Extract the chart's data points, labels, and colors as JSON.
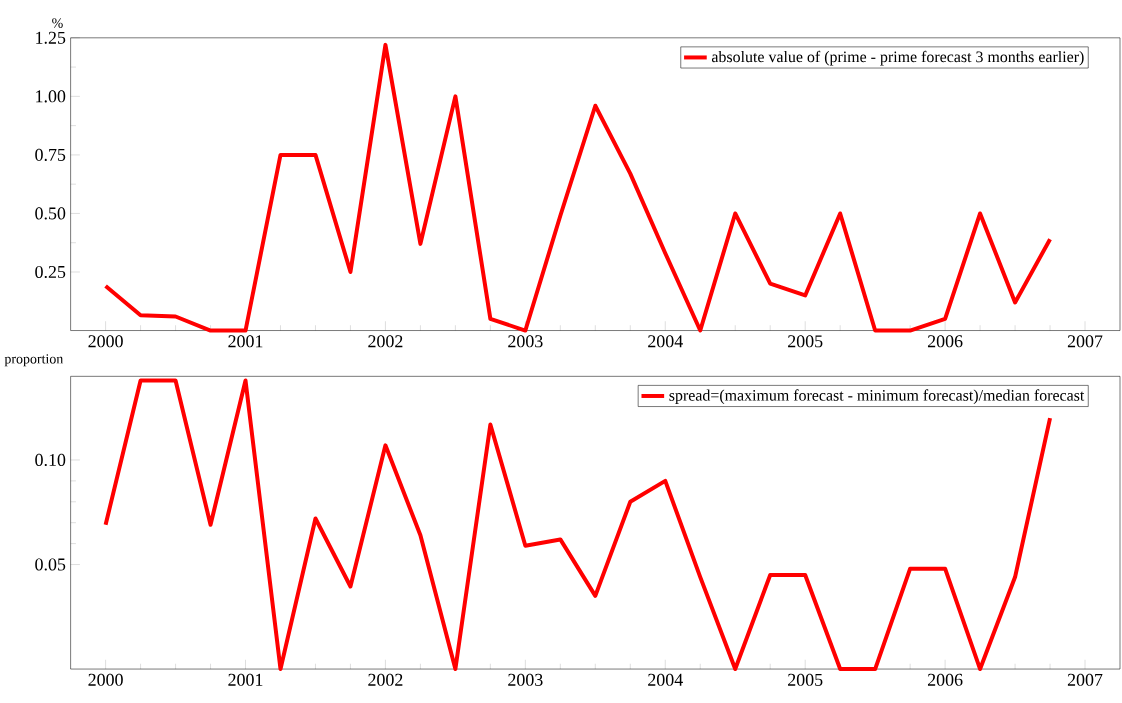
{
  "chart_data": [
    {
      "type": "line",
      "ylabel": "%",
      "legend": "top right",
      "line_style": "solid",
      "marker": "none",
      "x": [
        2000,
        2000.25,
        2000.5,
        2000.75,
        2001,
        2001.25,
        2001.5,
        2001.75,
        2002,
        2002.25,
        2002.5,
        2002.75,
        2003,
        2003.25,
        2003.5,
        2003.75,
        2004,
        2004.25,
        2004.5,
        2004.75,
        2005,
        2005.25,
        2005.5,
        2005.75,
        2006,
        2006.25,
        2006.5,
        2006.75
      ],
      "series": [
        {
          "name": "absolute value of (prime - prime forecast 3 months earlier)",
          "color": "#ff0000",
          "values": [
            0.19,
            0.065,
            0.06,
            0,
            0,
            0.75,
            0.75,
            0.25,
            1.22,
            0.37,
            1.0,
            0.05,
            0,
            0.49,
            0.96,
            0.67,
            0.33,
            0,
            0.5,
            0.2,
            0.15,
            0.5,
            0,
            0,
            0.05,
            0.5,
            0.12,
            0.39
          ]
        }
      ],
      "xlim": [
        1999.75,
        2007.25
      ],
      "xticks": [
        2000,
        2001,
        2002,
        2003,
        2004,
        2005,
        2006,
        2007
      ],
      "ylim": [
        0,
        1.25
      ],
      "yticks": [
        {
          "value": 0.25,
          "label": "0.25"
        },
        {
          "value": 0.5,
          "label": "0.50"
        },
        {
          "value": 0.75,
          "label": "0.75"
        },
        {
          "value": 1.0,
          "label": "1.00"
        },
        {
          "value": 1.25,
          "label": "1.25"
        }
      ]
    },
    {
      "type": "line",
      "ylabel": "proportion",
      "legend": "top right",
      "line_style": "solid",
      "marker": "none",
      "x": [
        2000,
        2000.25,
        2000.5,
        2000.75,
        2001,
        2001.25,
        2001.5,
        2001.75,
        2002,
        2002.25,
        2002.5,
        2002.75,
        2003,
        2003.25,
        2003.5,
        2003.75,
        2004,
        2004.25,
        2004.5,
        2004.75,
        2005,
        2005.25,
        2005.5,
        2005.75,
        2006,
        2006.25,
        2006.5,
        2006.75
      ],
      "series": [
        {
          "name": "spread=(maximum forecast - minimum forecast)/median forecast",
          "color": "#ff0000",
          "values": [
            0.069,
            0.138,
            0.138,
            0.069,
            0.138,
            0,
            0.072,
            0.0395,
            0.107,
            0.064,
            0,
            0.117,
            0.059,
            0.062,
            0.035,
            0.08,
            0.09,
            0.044,
            0,
            0.045,
            0.045,
            0,
            0,
            0.048,
            0.048,
            0,
            0.044,
            0.12
          ]
        }
      ],
      "xlim": [
        1999.75,
        2007.25
      ],
      "xticks": [
        2000,
        2001,
        2002,
        2003,
        2004,
        2005,
        2006,
        2007
      ],
      "ylim": [
        0,
        0.14
      ],
      "yticks": [
        {
          "value": 0.05,
          "label": "0.05"
        },
        {
          "value": 0.1,
          "label": "0.10"
        }
      ]
    }
  ]
}
